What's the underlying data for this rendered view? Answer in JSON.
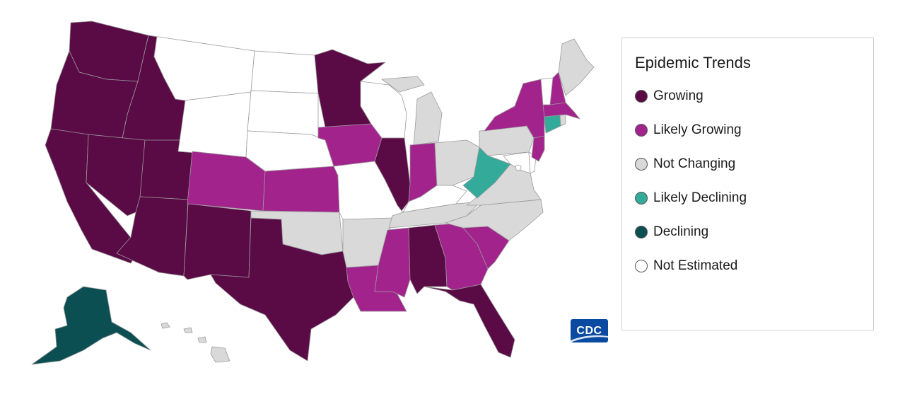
{
  "legend": {
    "title": "Epidemic Trends",
    "items": [
      {
        "label": "Growing",
        "color": "#5a0a45"
      },
      {
        "label": "Likely Growing",
        "color": "#a3238d"
      },
      {
        "label": "Not Changing",
        "color": "#d9d9d9"
      },
      {
        "label": "Likely Declining",
        "color": "#34ab9a"
      },
      {
        "label": "Declining",
        "color": "#0c4f53"
      },
      {
        "label": "Not Estimated",
        "color": "#ffffff"
      }
    ]
  },
  "logo": {
    "text": "CDC"
  },
  "states": {
    "WA": "Growing",
    "OR": "Growing",
    "CA": "Growing",
    "ID": "Growing",
    "NV": "Growing",
    "UT": "Growing",
    "AZ": "Growing",
    "NM": "Growing",
    "TX": "Growing",
    "MN": "Growing",
    "IL": "Growing",
    "AL": "Growing",
    "FL": "Growing",
    "CO": "Likely Growing",
    "KS": "Likely Growing",
    "IA": "Likely Growing",
    "IN": "Likely Growing",
    "MS": "Likely Growing",
    "LA": "Likely Growing",
    "GA": "Likely Growing",
    "SC": "Likely Growing",
    "NY": "Likely Growing",
    "NJ": "Likely Growing",
    "NH": "Likely Growing",
    "MA": "Likely Growing",
    "OK": "Not Changing",
    "AR": "Not Changing",
    "MI": "Not Changing",
    "OH": "Not Changing",
    "PA": "Not Changing",
    "VA": "Not Changing",
    "NC": "Not Changing",
    "TN": "Not Changing",
    "ME": "Not Changing",
    "RI": "Not Changing",
    "HI": "Not Changing",
    "WV": "Likely Declining",
    "CT": "Likely Declining",
    "AK": "Declining",
    "MT": "Not Estimated",
    "WY": "Not Estimated",
    "ND": "Not Estimated",
    "SD": "Not Estimated",
    "NE": "Not Estimated",
    "MO": "Not Estimated",
    "WI": "Not Estimated",
    "KY": "Not Estimated",
    "VT": "Not Estimated",
    "MD": "Not Estimated",
    "DE": "Not Estimated",
    "DC": "Not Estimated"
  }
}
